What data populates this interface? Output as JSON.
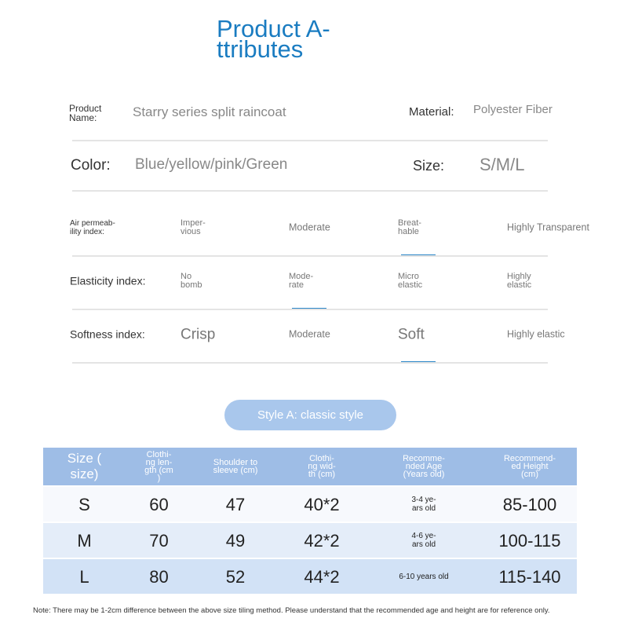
{
  "title": "Product A-\nttributes",
  "attributes": {
    "product_name_label": "Product\nName:",
    "product_name": "Starry series split raincoat",
    "material_label": "Material:",
    "material": "Polyester Fiber",
    "color_label": "Color:",
    "color": "Blue/yellow/pink/Green",
    "size_label": "Size:",
    "size": "S/M/L"
  },
  "indices": [
    {
      "label": "Air permeab-\nility index:",
      "options": [
        {
          "text": "Imper-\nvious",
          "selected": false
        },
        {
          "text": "Moderate",
          "selected": false
        },
        {
          "text": "Breat-\nhable",
          "selected": true
        },
        {
          "text": "Highly Transparent",
          "selected": false
        }
      ]
    },
    {
      "label": "Elasticity index:",
      "options": [
        {
          "text": "No\nbomb",
          "selected": false
        },
        {
          "text": "Mode-\nrate",
          "selected": true
        },
        {
          "text": "Micro\nelastic",
          "selected": false
        },
        {
          "text": "Highly\nelastic",
          "selected": false
        }
      ]
    },
    {
      "label": "Softness index:",
      "options": [
        {
          "text": "Crisp",
          "selected": false
        },
        {
          "text": "Moderate",
          "selected": false
        },
        {
          "text": "Soft",
          "selected": true
        },
        {
          "text": "Highly elastic",
          "selected": false
        }
      ]
    }
  ],
  "style_button": "Style A: classic style",
  "table": {
    "header": [
      "Size (\nsize)",
      "Clothi-\nng len-\ngth (cm\n)",
      "Shoulder to\nsleeve (cm)",
      "Clothi-\nng wid-\nth (cm)",
      "Recomme-\nnded Age\n(Years old)",
      "Recommend-\ned Height\n(cm)"
    ],
    "rows": [
      [
        "S",
        60,
        47,
        "40*2",
        "3-4 ye-\nars old",
        "85-100"
      ],
      [
        "M",
        70,
        49,
        "42*2",
        "4-6 ye-\nars old",
        "100-115"
      ],
      [
        "L",
        80,
        52,
        "44*2",
        "6-10 years old",
        "115-140"
      ]
    ]
  },
  "note": "Note: There may be 1-2cm difference between the above size tiling method. Please understand that the recommended age and height are for reference only."
}
